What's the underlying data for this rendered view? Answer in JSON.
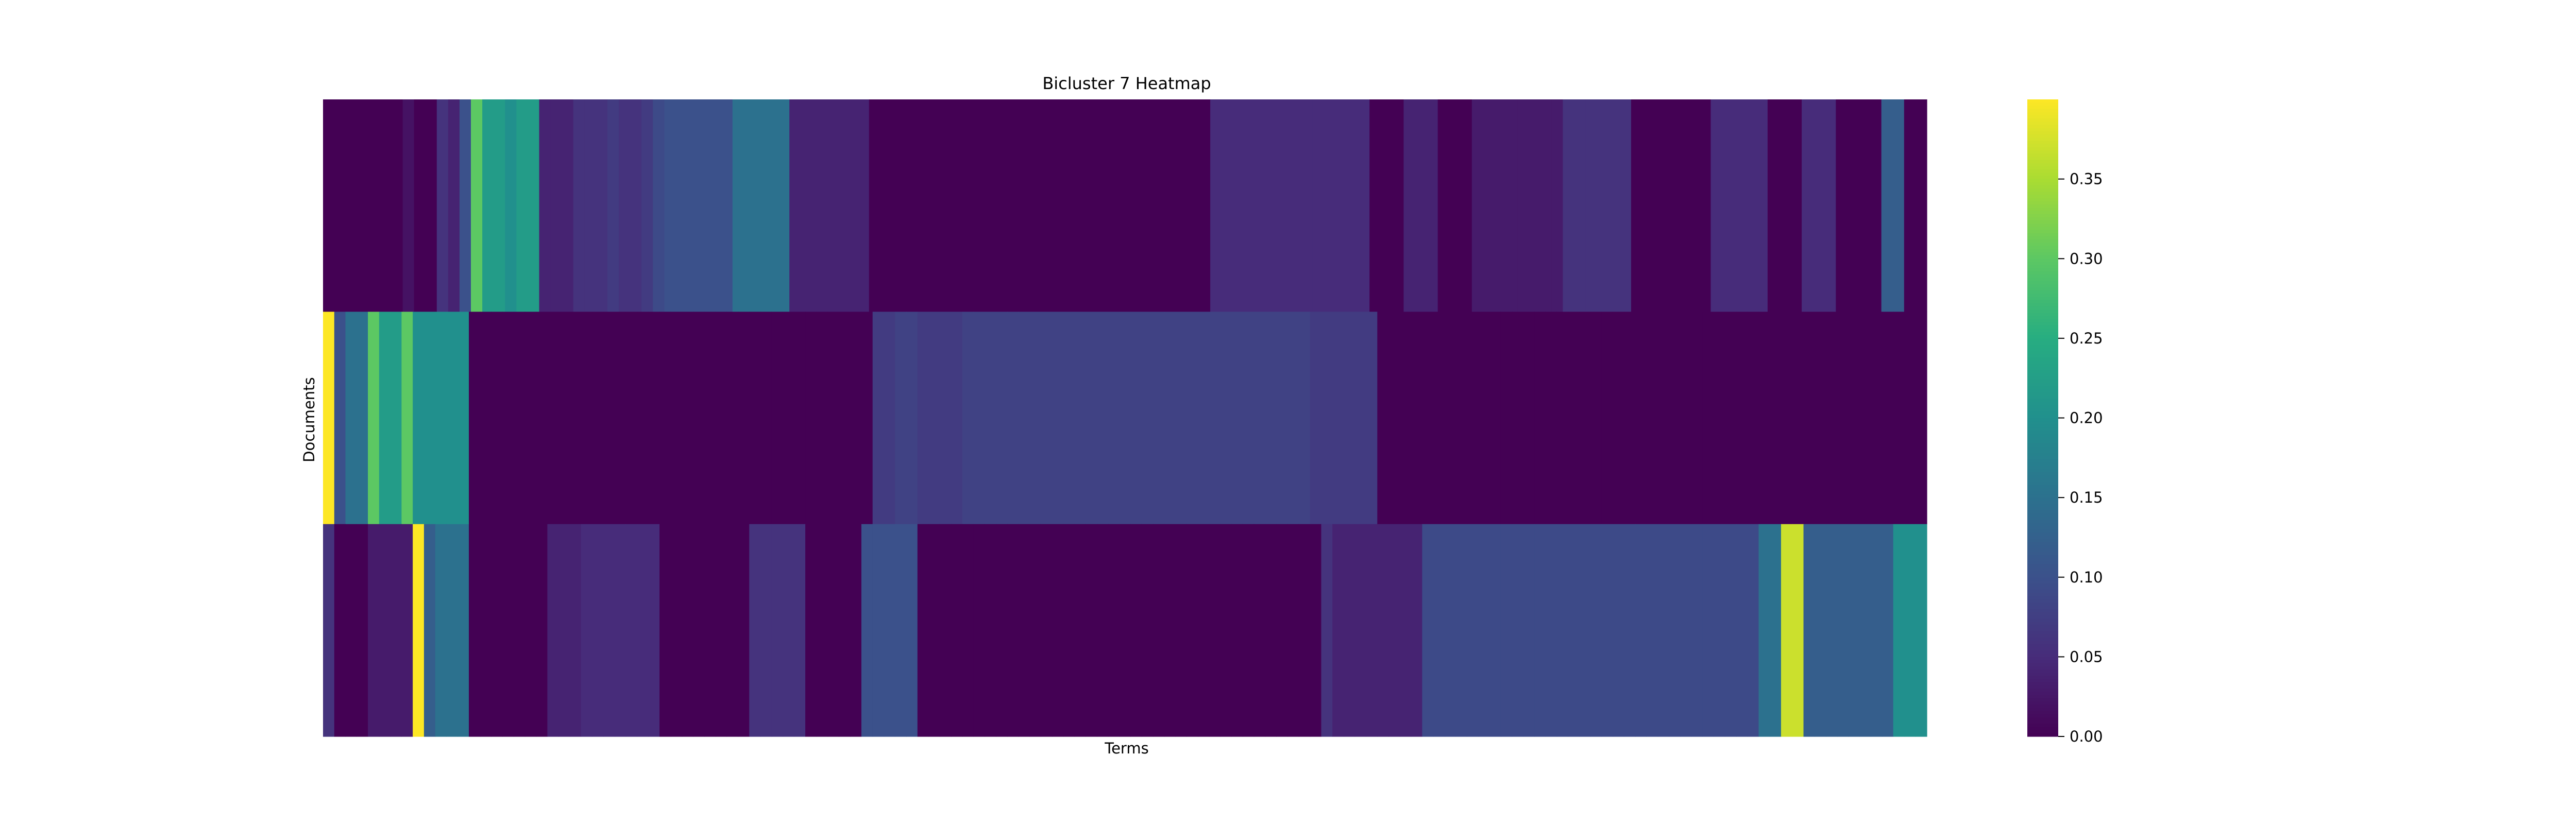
{
  "chart_data": {
    "type": "heatmap",
    "title": "Bicluster 7 Heatmap",
    "xlabel": "Terms",
    "ylabel": "Documents",
    "rows": 3,
    "colormap": "viridis",
    "value_range": [
      0,
      0.4
    ],
    "colorbar_ticks": [
      "0.00",
      "0.05",
      "0.10",
      "0.15",
      "0.20",
      "0.25",
      "0.30",
      "0.35"
    ],
    "x_tick_labels_visible": false,
    "y_tick_labels_visible": false,
    "values": [
      [
        0.0,
        0.0,
        0.0,
        0.0,
        0.0,
        0.0,
        0.0,
        0.02,
        0.0,
        0.0,
        0.06,
        0.04,
        0.1,
        0.3,
        0.22,
        0.22,
        0.2,
        0.22,
        0.22,
        0.04,
        0.04,
        0.04,
        0.06,
        0.06,
        0.06,
        0.07,
        0.06,
        0.06,
        0.07,
        0.09,
        0.1,
        0.1,
        0.1,
        0.1,
        0.1,
        0.1,
        0.15,
        0.15,
        0.15,
        0.15,
        0.15,
        0.04,
        0.04,
        0.04,
        0.04,
        0.04,
        0.04,
        0.04,
        0.0,
        0.0,
        0.0,
        0.0,
        0.0,
        0.0,
        0.0,
        0.0,
        0.0,
        0.0,
        0.0,
        0.0,
        0.0,
        0.0,
        0.0,
        0.0,
        0.0,
        0.0,
        0.0,
        0.0,
        0.0,
        0.0,
        0.0,
        0.0,
        0.0,
        0.0,
        0.0,
        0.0,
        0.0,
        0.0,
        0.05,
        0.05,
        0.05,
        0.05,
        0.05,
        0.05,
        0.05,
        0.05,
        0.05,
        0.05,
        0.05,
        0.05,
        0.05,
        0.05,
        0.0,
        0.0,
        0.0,
        0.04,
        0.04,
        0.04,
        0.0,
        0.0,
        0.0,
        0.03,
        0.03,
        0.03,
        0.03,
        0.03,
        0.03,
        0.03,
        0.03,
        0.06,
        0.06,
        0.06,
        0.06,
        0.06,
        0.06,
        0.0,
        0.0,
        0.0,
        0.0,
        0.0,
        0.0,
        0.0,
        0.05,
        0.05,
        0.05,
        0.05,
        0.05,
        0.0,
        0.0,
        0.0,
        0.05,
        0.05,
        0.05,
        0.0,
        0.0,
        0.0,
        0.0,
        0.12,
        0.12,
        0.0,
        0.0
      ],
      [
        0.4,
        0.1,
        0.15,
        0.15,
        0.3,
        0.22,
        0.22,
        0.3,
        0.2,
        0.2,
        0.2,
        0.2,
        0.2,
        0.0,
        0.0,
        0.0,
        0.0,
        0.0,
        0.0,
        0.0,
        0.0,
        0.0,
        0.0,
        0.0,
        0.0,
        0.0,
        0.0,
        0.0,
        0.0,
        0.0,
        0.0,
        0.0,
        0.0,
        0.0,
        0.0,
        0.0,
        0.0,
        0.0,
        0.0,
        0.0,
        0.0,
        0.0,
        0.0,
        0.0,
        0.0,
        0.0,
        0.0,
        0.0,
        0.0,
        0.07,
        0.07,
        0.08,
        0.08,
        0.07,
        0.07,
        0.07,
        0.07,
        0.08,
        0.08,
        0.08,
        0.08,
        0.08,
        0.08,
        0.08,
        0.08,
        0.08,
        0.08,
        0.08,
        0.08,
        0.08,
        0.08,
        0.08,
        0.08,
        0.08,
        0.08,
        0.08,
        0.08,
        0.08,
        0.08,
        0.08,
        0.08,
        0.08,
        0.08,
        0.08,
        0.08,
        0.08,
        0.08,
        0.08,
        0.07,
        0.07,
        0.07,
        0.07,
        0.07,
        0.07,
        0.0,
        0.0,
        0.0,
        0.0,
        0.0,
        0.0,
        0.0,
        0.0,
        0.0,
        0.0,
        0.0,
        0.0,
        0.0,
        0.0,
        0.0,
        0.0,
        0.0,
        0.0,
        0.0,
        0.0,
        0.0,
        0.0,
        0.0,
        0.0,
        0.0,
        0.0,
        0.0,
        0.0,
        0.0,
        0.0,
        0.0,
        0.0,
        0.0,
        0.0,
        0.0,
        0.0,
        0.0,
        0.0,
        0.0,
        0.0,
        0.0,
        0.0,
        0.0,
        0.0,
        0.0,
        0.0,
        0.0,
        0.0,
        0.0
      ],
      [
        0.06,
        0.0,
        0.0,
        0.0,
        0.03,
        0.03,
        0.03,
        0.03,
        0.4,
        0.12,
        0.15,
        0.15,
        0.15,
        0.0,
        0.0,
        0.0,
        0.0,
        0.0,
        0.0,
        0.0,
        0.04,
        0.04,
        0.04,
        0.05,
        0.05,
        0.05,
        0.05,
        0.05,
        0.05,
        0.05,
        0.0,
        0.0,
        0.0,
        0.0,
        0.0,
        0.0,
        0.0,
        0.0,
        0.06,
        0.06,
        0.06,
        0.06,
        0.06,
        0.0,
        0.0,
        0.0,
        0.0,
        0.0,
        0.1,
        0.1,
        0.1,
        0.1,
        0.1,
        0.0,
        0.0,
        0.0,
        0.0,
        0.0,
        0.0,
        0.0,
        0.0,
        0.0,
        0.0,
        0.0,
        0.0,
        0.0,
        0.0,
        0.0,
        0.0,
        0.0,
        0.0,
        0.0,
        0.0,
        0.0,
        0.0,
        0.0,
        0.0,
        0.0,
        0.0,
        0.0,
        0.0,
        0.0,
        0.0,
        0.0,
        0.0,
        0.0,
        0.0,
        0.0,
        0.0,
        0.06,
        0.04,
        0.04,
        0.04,
        0.04,
        0.04,
        0.04,
        0.04,
        0.04,
        0.09,
        0.09,
        0.09,
        0.09,
        0.09,
        0.09,
        0.09,
        0.09,
        0.09,
        0.09,
        0.09,
        0.09,
        0.09,
        0.09,
        0.09,
        0.09,
        0.09,
        0.09,
        0.09,
        0.09,
        0.09,
        0.09,
        0.09,
        0.09,
        0.09,
        0.09,
        0.09,
        0.09,
        0.09,
        0.09,
        0.15,
        0.15,
        0.37,
        0.37,
        0.12,
        0.12,
        0.12,
        0.12,
        0.12,
        0.12,
        0.12,
        0.12,
        0.2,
        0.2,
        0.2
      ]
    ]
  }
}
